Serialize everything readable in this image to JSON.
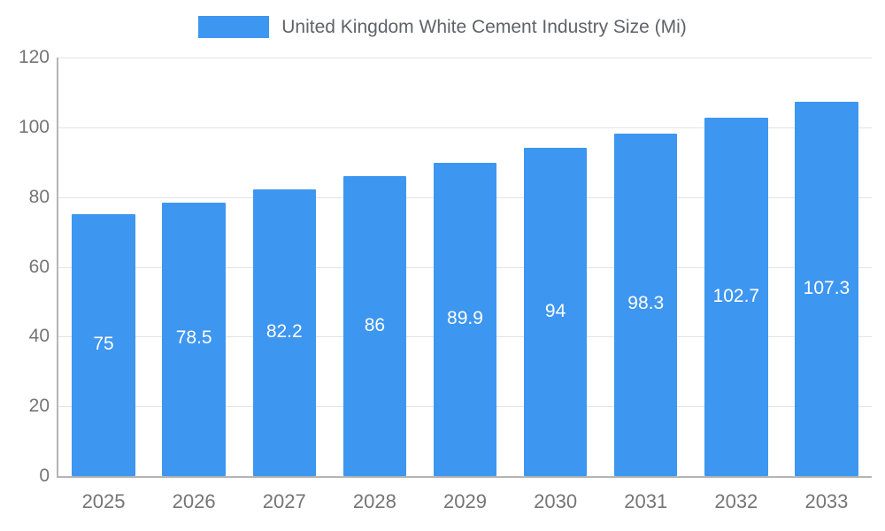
{
  "accent_color": "#3d96f0",
  "legend": {
    "label": "United Kingdom White Cement Industry Size (Mi)"
  },
  "chart_data": {
    "type": "bar",
    "title": "United Kingdom White Cement Industry Size (Mi)",
    "categories": [
      "2025",
      "2026",
      "2027",
      "2028",
      "2029",
      "2030",
      "2031",
      "2032",
      "2033"
    ],
    "values": [
      75,
      78.5,
      82.2,
      86,
      89.9,
      94,
      98.3,
      102.7,
      107.3
    ],
    "value_labels": [
      "75",
      "78.5",
      "82.2",
      "86",
      "89.9",
      "94",
      "98.3",
      "102.7",
      "107.3"
    ],
    "xlabel": "",
    "ylabel": "",
    "ylim": [
      0,
      120
    ],
    "yticks": [
      0,
      20,
      40,
      60,
      80,
      100,
      120
    ],
    "grid": "horizontal",
    "legend_position": "top-center",
    "bar_color": "#3d96f0",
    "bar_label_color": "#ffffff"
  }
}
